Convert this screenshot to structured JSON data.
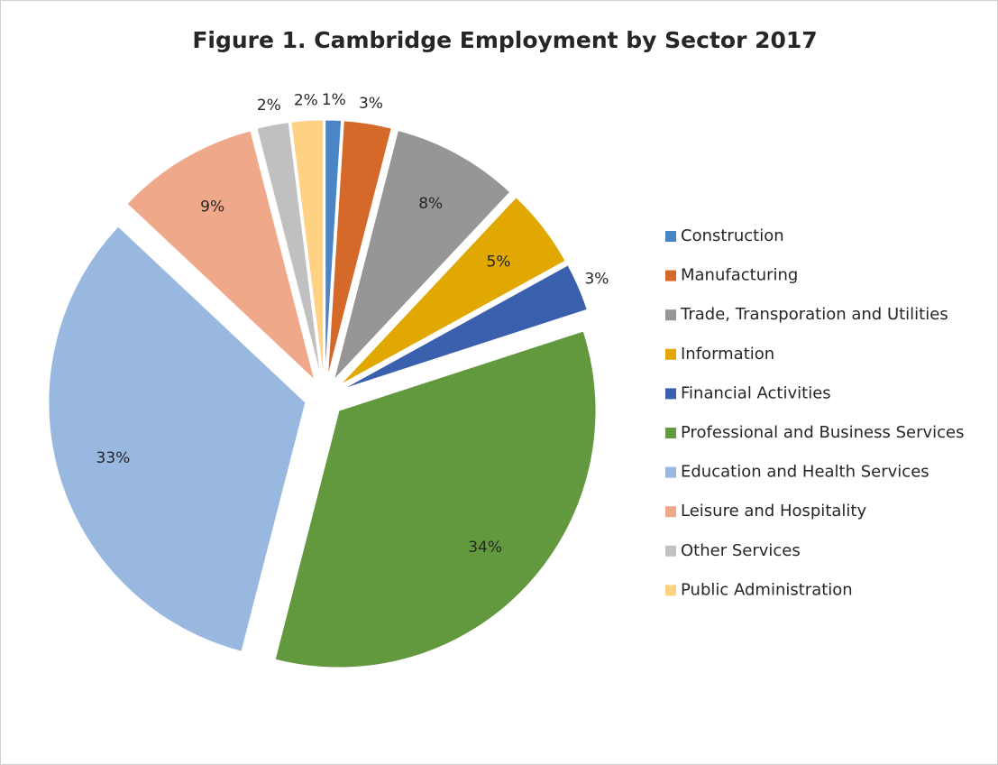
{
  "chart_data": {
    "type": "pie",
    "title": "Figure 1. Cambridge Employment by Sector 2017",
    "categories": [
      "Construction",
      "Manufacturing",
      "Trade, Transporation and Utilities",
      "Information",
      "Financial Activities",
      "Professional and Business Services",
      "Education and Health Services",
      "Leisure and Hospitality",
      "Other Services",
      "Public Administration"
    ],
    "values": [
      1,
      3,
      8,
      5,
      3,
      34,
      33,
      9,
      2,
      2
    ],
    "value_labels": [
      "1%",
      "3%",
      "8%",
      "5%",
      "3%",
      "34%",
      "33%",
      "9%",
      "2%",
      "2%"
    ],
    "colors": [
      "#4a86c5",
      "#d4692a",
      "#969696",
      "#e0a800",
      "#3a5fad",
      "#62993e",
      "#98b8e0",
      "#f0a88a",
      "#c0c0c0",
      "#ffd183"
    ],
    "legend": "right"
  }
}
